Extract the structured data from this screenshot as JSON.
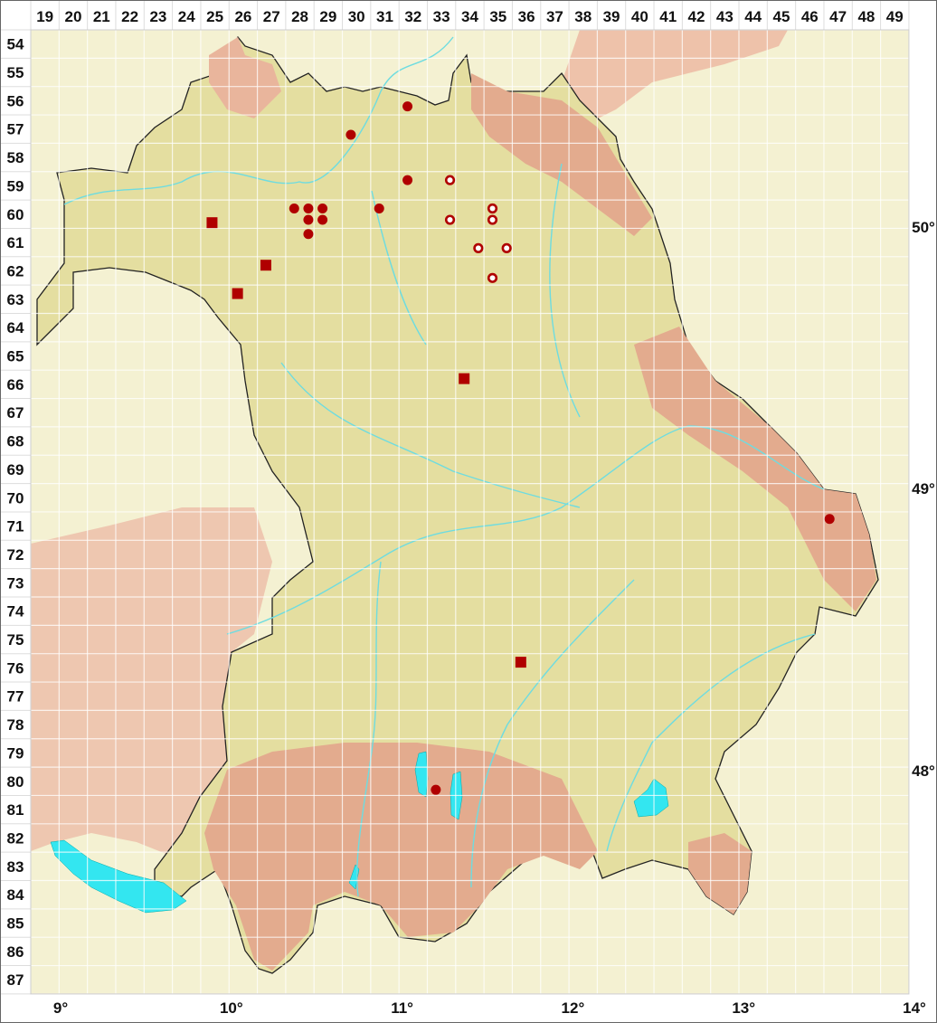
{
  "grid": {
    "columns": [
      "19",
      "20",
      "21",
      "22",
      "23",
      "24",
      "25",
      "26",
      "27",
      "28",
      "29",
      "30",
      "31",
      "32",
      "33",
      "34",
      "35",
      "36",
      "37",
      "38",
      "39",
      "40",
      "41",
      "42",
      "43",
      "44",
      "45",
      "46",
      "47",
      "48",
      "49"
    ],
    "rows": [
      "54",
      "55",
      "56",
      "57",
      "58",
      "59",
      "60",
      "61",
      "62",
      "63",
      "64",
      "65",
      "66",
      "67",
      "68",
      "69",
      "70",
      "71",
      "72",
      "73",
      "74",
      "75",
      "76",
      "77",
      "78",
      "79",
      "80",
      "81",
      "82",
      "83",
      "84",
      "85",
      "86",
      "87"
    ]
  },
  "longitude_labels": [
    {
      "label": "9°",
      "lon": 9
    },
    {
      "label": "10°",
      "lon": 10
    },
    {
      "label": "11°",
      "lon": 11
    },
    {
      "label": "12°",
      "lon": 12
    },
    {
      "label": "13°",
      "lon": 13
    },
    {
      "label": "14°",
      "lon": 14
    }
  ],
  "latitude_labels": [
    {
      "label": "50°",
      "lat": 50
    },
    {
      "label": "49°",
      "lat": 49
    },
    {
      "label": "48°",
      "lat": 48
    }
  ],
  "colors": {
    "marker": "#b00000",
    "water": "#33e6f0",
    "region": "#e4dea0",
    "outside": "#f4f1d2",
    "upland": "#e7a58c"
  },
  "legend_symbols": {
    "filled-circle": "record (filled circle)",
    "open-circle": "record (open circle)",
    "square": "record (square)"
  },
  "markers": [
    {
      "type": "filled-circle",
      "col": 31.8,
      "row": 56.2
    },
    {
      "type": "filled-circle",
      "col": 29.8,
      "row": 57.2
    },
    {
      "type": "filled-circle",
      "col": 31.8,
      "row": 58.8
    },
    {
      "type": "filled-circle",
      "col": 27.8,
      "row": 59.8
    },
    {
      "type": "filled-circle",
      "col": 28.3,
      "row": 59.8
    },
    {
      "type": "filled-circle",
      "col": 28.8,
      "row": 59.8
    },
    {
      "type": "filled-circle",
      "col": 28.3,
      "row": 60.2
    },
    {
      "type": "filled-circle",
      "col": 28.8,
      "row": 60.2
    },
    {
      "type": "filled-circle",
      "col": 28.3,
      "row": 60.7
    },
    {
      "type": "filled-circle",
      "col": 30.8,
      "row": 59.8
    },
    {
      "type": "filled-circle",
      "col": 32.8,
      "row": 80.3
    },
    {
      "type": "filled-circle",
      "col": 46.7,
      "row": 70.75
    },
    {
      "type": "open-circle",
      "col": 33.3,
      "row": 58.8
    },
    {
      "type": "open-circle",
      "col": 33.3,
      "row": 60.2
    },
    {
      "type": "open-circle",
      "col": 34.8,
      "row": 59.8
    },
    {
      "type": "open-circle",
      "col": 34.8,
      "row": 60.2
    },
    {
      "type": "open-circle",
      "col": 34.3,
      "row": 61.2
    },
    {
      "type": "open-circle",
      "col": 35.3,
      "row": 61.2
    },
    {
      "type": "open-circle",
      "col": 34.8,
      "row": 62.25
    },
    {
      "type": "square",
      "col": 24.9,
      "row": 60.3
    },
    {
      "type": "square",
      "col": 26.8,
      "row": 61.8
    },
    {
      "type": "square",
      "col": 25.8,
      "row": 62.8
    },
    {
      "type": "square",
      "col": 33.8,
      "row": 65.8
    },
    {
      "type": "square",
      "col": 35.8,
      "row": 75.8
    }
  ]
}
